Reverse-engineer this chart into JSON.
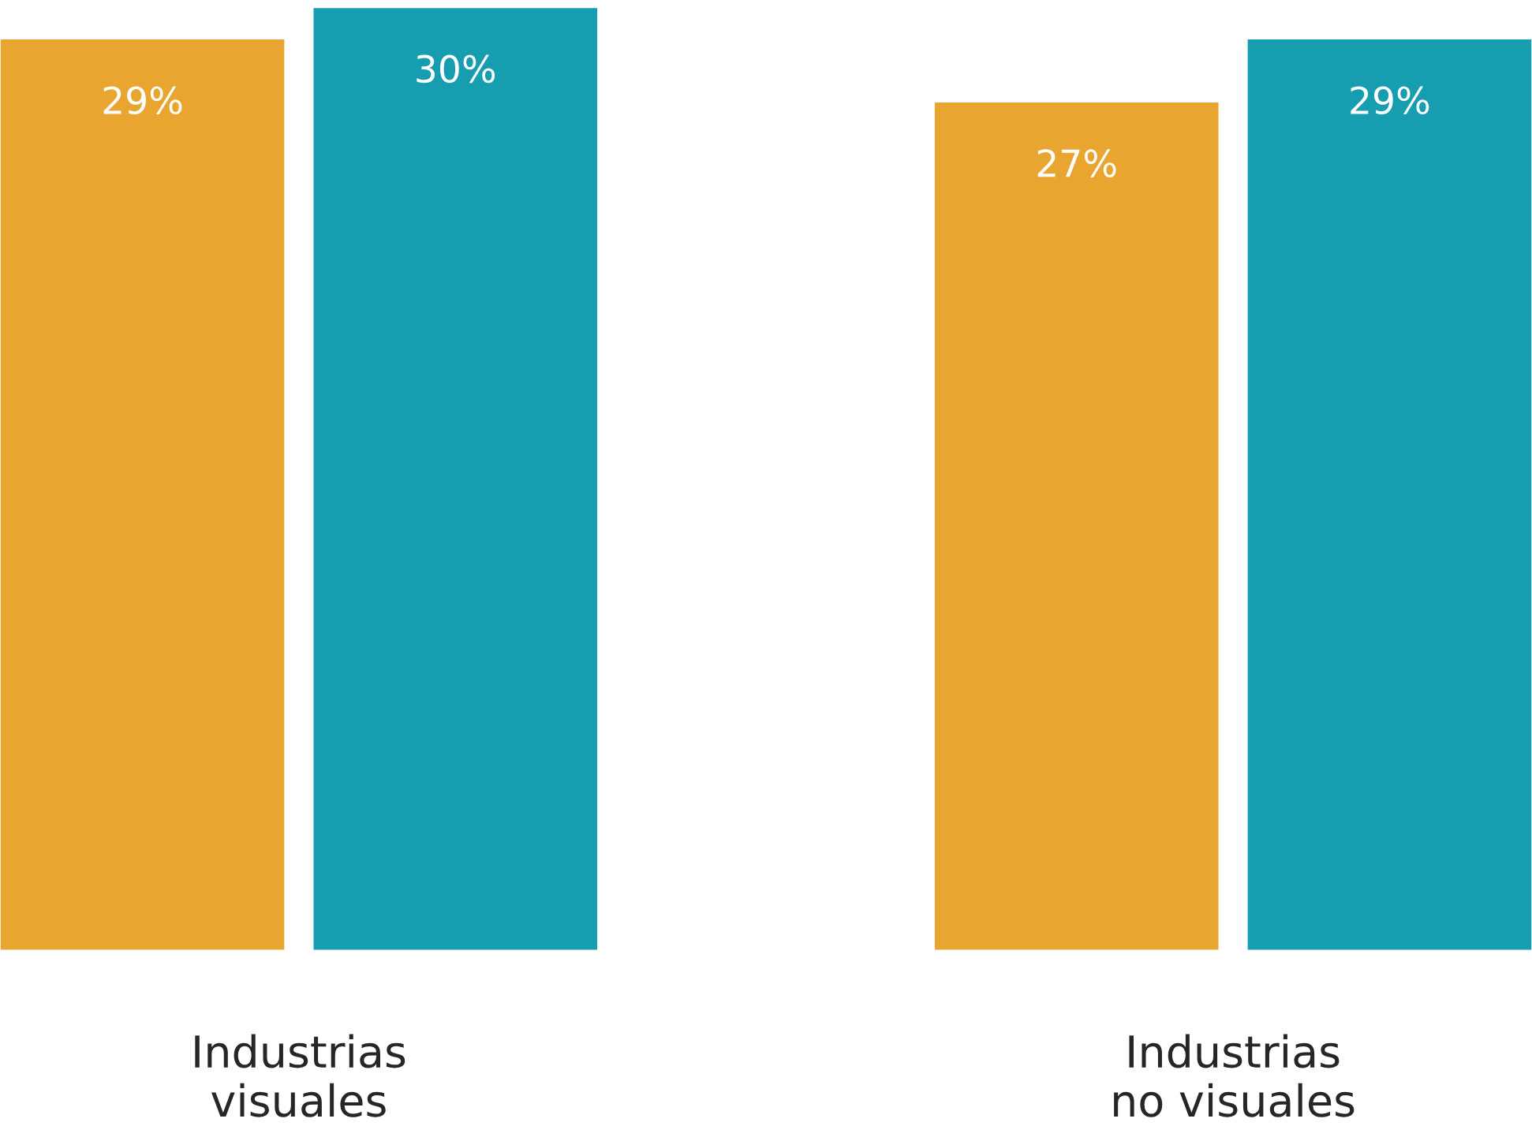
{
  "chart_data": {
    "type": "bar",
    "categories": [
      "Industrias\nvisuales",
      "Industrias\nno visuales"
    ],
    "series": [
      {
        "color": "#e8a52f",
        "values": [
          29,
          27
        ],
        "value_labels": [
          "29%",
          "27%"
        ]
      },
      {
        "color": "#169db0",
        "values": [
          30,
          29
        ],
        "value_labels": [
          "30%",
          "29%"
        ]
      }
    ],
    "tick_labels": "x"
  }
}
